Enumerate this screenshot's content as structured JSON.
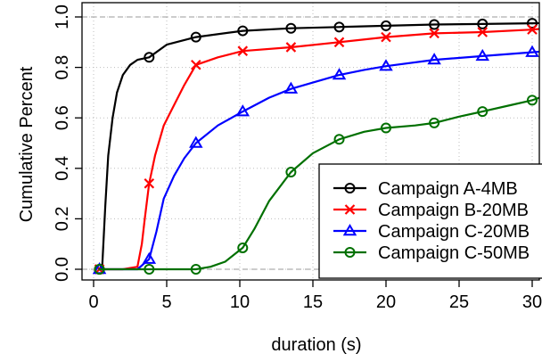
{
  "chart_data": {
    "type": "line",
    "title": "",
    "xlabel": "duration (s)",
    "ylabel": "Cumulative Percent",
    "xlim": [
      0,
      31
    ],
    "ylim": [
      0,
      1.0
    ],
    "x_ticks": [
      0,
      5,
      10,
      15,
      20,
      25,
      30
    ],
    "y_ticks": [
      0.0,
      0.2,
      0.4,
      0.6,
      0.8,
      1.0
    ],
    "x_tick_labels": [
      "0",
      "5",
      "10",
      "15",
      "20",
      "25",
      "30"
    ],
    "y_tick_labels": [
      "0.0",
      "0.2",
      "0.4",
      "0.6",
      "0.8",
      "1.0"
    ],
    "grid": true,
    "legend_position": "bottom-right",
    "series": [
      {
        "name": "Campaign A-4MB",
        "color": "#000000",
        "marker": "circle",
        "x": [
          0.4,
          0.6,
          0.8,
          1.0,
          1.3,
          1.6,
          2.0,
          2.5,
          3.0,
          3.8,
          5.0,
          7.0,
          10.2,
          13.5,
          16.8,
          20.0,
          23.3,
          26.6,
          30.0,
          31.0
        ],
        "y": [
          0.0,
          0.02,
          0.25,
          0.45,
          0.6,
          0.7,
          0.77,
          0.81,
          0.83,
          0.84,
          0.89,
          0.92,
          0.945,
          0.955,
          0.96,
          0.965,
          0.97,
          0.972,
          0.975,
          0.976
        ],
        "marker_x": [
          0.4,
          3.8,
          7.0,
          10.2,
          13.5,
          16.8,
          20.0,
          23.3,
          26.6,
          30.0
        ],
        "marker_y": [
          0.0,
          0.84,
          0.92,
          0.945,
          0.955,
          0.96,
          0.965,
          0.97,
          0.972,
          0.975
        ]
      },
      {
        "name": "Campaign B-20MB",
        "color": "#ff0000",
        "marker": "x",
        "x": [
          0.4,
          2.0,
          3.0,
          3.3,
          3.5,
          3.8,
          4.2,
          4.8,
          5.5,
          6.2,
          7.0,
          8.5,
          10.2,
          13.5,
          16.8,
          20.0,
          23.3,
          26.6,
          30.0,
          31.0
        ],
        "y": [
          0.0,
          0.0,
          0.01,
          0.1,
          0.2,
          0.34,
          0.45,
          0.57,
          0.65,
          0.73,
          0.81,
          0.84,
          0.865,
          0.88,
          0.9,
          0.92,
          0.935,
          0.94,
          0.95,
          0.955
        ],
        "marker_x": [
          0.4,
          3.8,
          7.0,
          10.2,
          13.5,
          16.8,
          20.0,
          23.3,
          26.6,
          30.0
        ],
        "marker_y": [
          0.0,
          0.34,
          0.81,
          0.865,
          0.88,
          0.9,
          0.92,
          0.935,
          0.94,
          0.95
        ]
      },
      {
        "name": "Campaign C-20MB",
        "color": "#0000ff",
        "marker": "triangle",
        "x": [
          0.4,
          3.0,
          3.8,
          4.3,
          4.8,
          5.5,
          6.2,
          7.0,
          8.5,
          10.2,
          12.0,
          13.5,
          15.0,
          16.8,
          18.5,
          20.0,
          23.3,
          26.6,
          30.0,
          31.0
        ],
        "y": [
          0.0,
          0.0,
          0.04,
          0.15,
          0.28,
          0.37,
          0.44,
          0.5,
          0.57,
          0.625,
          0.68,
          0.715,
          0.74,
          0.77,
          0.79,
          0.805,
          0.83,
          0.845,
          0.86,
          0.865
        ],
        "marker_x": [
          0.4,
          3.8,
          7.0,
          10.2,
          13.5,
          16.8,
          20.0,
          23.3,
          26.6,
          30.0
        ],
        "marker_y": [
          0.0,
          0.04,
          0.5,
          0.625,
          0.715,
          0.77,
          0.805,
          0.83,
          0.845,
          0.86
        ]
      },
      {
        "name": "Campaign C-50MB",
        "color": "#007000",
        "marker": "circle",
        "x": [
          0.4,
          3.8,
          7.0,
          8.0,
          9.0,
          10.2,
          11.0,
          12.0,
          13.5,
          15.0,
          16.8,
          18.5,
          20.0,
          22.0,
          23.3,
          25.0,
          26.6,
          28.5,
          30.0,
          31.0
        ],
        "y": [
          0.0,
          0.0,
          0.0,
          0.01,
          0.03,
          0.085,
          0.16,
          0.27,
          0.385,
          0.46,
          0.515,
          0.545,
          0.56,
          0.57,
          0.58,
          0.605,
          0.625,
          0.65,
          0.67,
          0.69
        ],
        "marker_x": [
          0.4,
          3.8,
          7.0,
          10.2,
          13.5,
          16.8,
          20.0,
          23.3,
          26.6,
          30.0
        ],
        "marker_y": [
          0.0,
          0.0,
          0.0,
          0.085,
          0.385,
          0.515,
          0.56,
          0.58,
          0.625,
          0.67
        ]
      }
    ]
  }
}
